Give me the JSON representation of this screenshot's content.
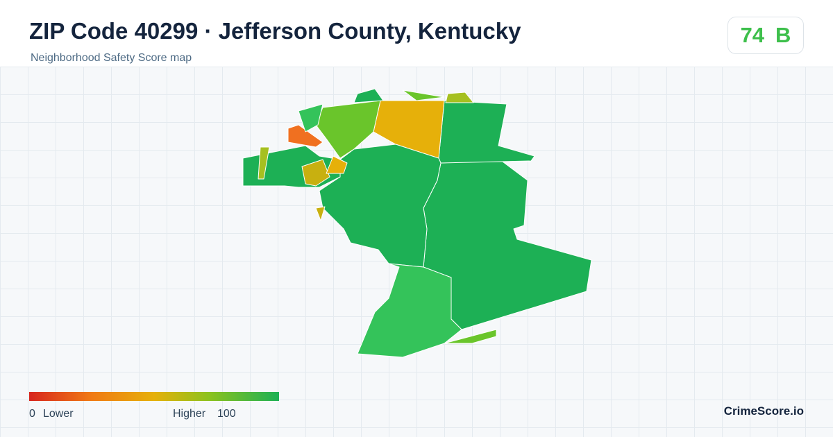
{
  "header": {
    "title": "ZIP Code 40299 · Jefferson County, Kentucky",
    "subtitle": "Neighborhood Safety Score map"
  },
  "badge": {
    "score": 74,
    "grade": "B"
  },
  "legend": {
    "min": 0,
    "min_label": "Lower",
    "max_label": "Higher",
    "max": 100
  },
  "brand": "CrimeScore.io"
}
